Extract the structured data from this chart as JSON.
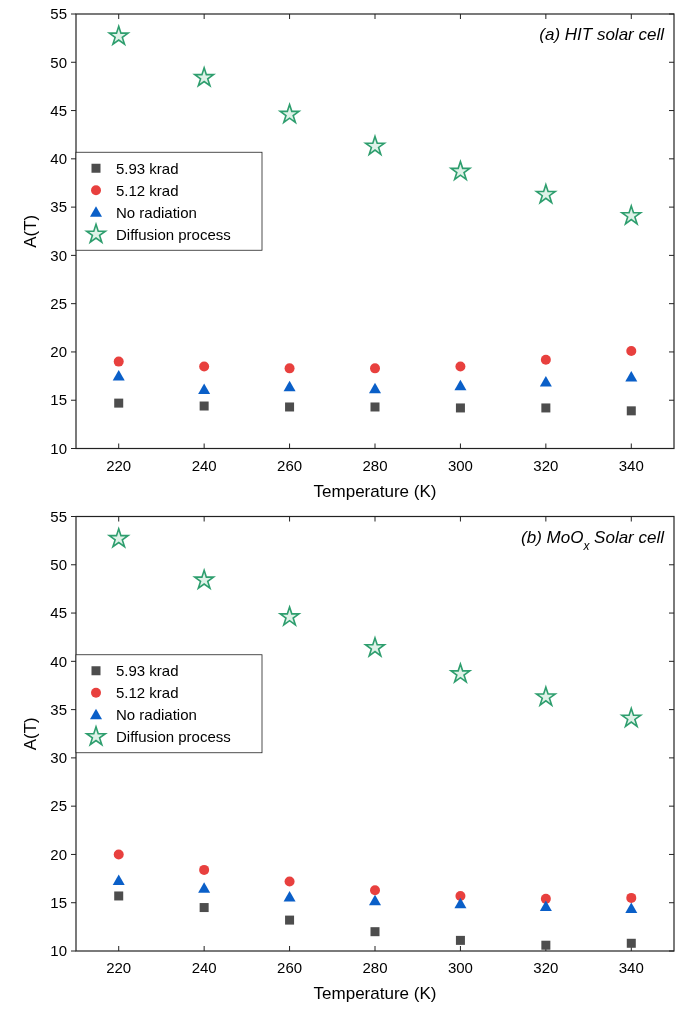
{
  "chart_data": [
    {
      "type": "scatter",
      "annotations": [
        "(a) HIT solar cell"
      ],
      "xlabel": "Temperature (K)",
      "ylabel": "A(T)",
      "x": [
        220,
        240,
        260,
        280,
        300,
        320,
        340
      ],
      "xlim": [
        210,
        350
      ],
      "xticks": [
        220,
        240,
        260,
        280,
        300,
        320,
        340
      ],
      "ylim": [
        10,
        55
      ],
      "yticks": [
        10,
        15,
        20,
        25,
        30,
        35,
        40,
        45,
        50,
        55
      ],
      "grid": false,
      "legend": "left",
      "series": [
        {
          "name": "5.93 krad",
          "color": "#4d4d4d",
          "marker": "square",
          "values": [
            14.7,
            14.4,
            14.3,
            14.3,
            14.2,
            14.2,
            13.9
          ]
        },
        {
          "name": "5.12 krad",
          "color": "#e8403e",
          "marker": "circle",
          "values": [
            19.0,
            18.5,
            18.3,
            18.3,
            18.5,
            19.2,
            20.1
          ]
        },
        {
          "name": "No radiation",
          "color": "#0a5fc8",
          "marker": "triangle",
          "values": [
            17.5,
            16.1,
            16.4,
            16.2,
            16.5,
            16.9,
            17.4
          ]
        },
        {
          "name": "Diffusion process",
          "color": "#2e9e6e",
          "marker": "star",
          "values": [
            52.7,
            48.4,
            44.6,
            41.3,
            38.7,
            36.3,
            34.1
          ]
        }
      ]
    },
    {
      "type": "scatter",
      "annotations": [
        "(b) MoO$_{x}$ Solar cell"
      ],
      "xlabel": "Temperature (K)",
      "ylabel": "A(T)",
      "x": [
        220,
        240,
        260,
        280,
        300,
        320,
        340
      ],
      "xlim": [
        210,
        350
      ],
      "xticks": [
        220,
        240,
        260,
        280,
        300,
        320,
        340
      ],
      "ylim": [
        10,
        55
      ],
      "yticks": [
        10,
        15,
        20,
        25,
        30,
        35,
        40,
        45,
        50,
        55
      ],
      "grid": false,
      "legend": "left",
      "series": [
        {
          "name": "5.93 krad",
          "color": "#4d4d4d",
          "marker": "square",
          "values": [
            15.7,
            14.5,
            13.2,
            12.0,
            11.1,
            10.6,
            10.8
          ]
        },
        {
          "name": "5.12 krad",
          "color": "#e8403e",
          "marker": "circle",
          "values": [
            20.0,
            18.4,
            17.2,
            16.3,
            15.7,
            15.4,
            15.5
          ]
        },
        {
          "name": "No radiation",
          "color": "#0a5fc8",
          "marker": "triangle",
          "values": [
            17.3,
            16.5,
            15.6,
            15.2,
            14.9,
            14.6,
            14.4
          ]
        },
        {
          "name": "Diffusion process",
          "color": "#2e9e6e",
          "marker": "star",
          "values": [
            52.7,
            48.4,
            44.6,
            41.4,
            38.7,
            36.3,
            34.1
          ]
        }
      ]
    }
  ]
}
